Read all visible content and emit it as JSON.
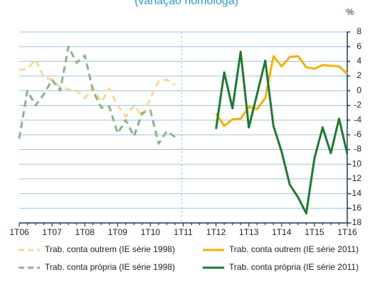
{
  "chart_data": {
    "type": "line",
    "title": "(variação homóloga)",
    "unit": "%",
    "categories": [
      "1T06",
      null,
      null,
      null,
      "1T07",
      null,
      null,
      null,
      "1T08",
      null,
      null,
      null,
      "1T09",
      null,
      null,
      null,
      "1T10",
      null,
      null,
      null,
      "1T11",
      null,
      null,
      null,
      "1T12",
      null,
      null,
      null,
      "1T13",
      null,
      null,
      null,
      "1T14",
      null,
      null,
      null,
      "1T15",
      null,
      null,
      null,
      "1T16"
    ],
    "series": [
      {
        "name": "Trab. conta outrem (IE série 1998)",
        "color": "#fbd896",
        "dashed": true,
        "values": [
          2.8,
          3.0,
          4.2,
          1.8,
          1.5,
          0.5,
          0.2,
          0.0,
          -1.0,
          0.3,
          -1.5,
          0.3,
          -2.0,
          -3.5,
          -2.0,
          -3.5,
          -1.0,
          1.3,
          1.5,
          0.8,
          null,
          null,
          null,
          null,
          null,
          null,
          null,
          null,
          null,
          null,
          null,
          null,
          null,
          null,
          null,
          null,
          null,
          null,
          null,
          null,
          null
        ]
      },
      {
        "name": "Trab. conta outrem (IE série 2011)",
        "color": "#f5b300",
        "dashed": false,
        "values": [
          null,
          null,
          null,
          null,
          null,
          null,
          null,
          null,
          null,
          null,
          null,
          null,
          null,
          null,
          null,
          null,
          null,
          null,
          null,
          null,
          null,
          null,
          null,
          null,
          -3.1,
          -4.8,
          -3.9,
          -3.8,
          -2.2,
          -2.5,
          -1.0,
          4.7,
          3.3,
          4.6,
          4.7,
          3.2,
          3.0,
          3.5,
          3.4,
          3.3,
          2.3
        ]
      },
      {
        "name": "Trab. conta própria (IE série 1998)",
        "color": "#8db38a",
        "dashed": true,
        "values": [
          -6.5,
          0.0,
          -2.0,
          -0.5,
          1.5,
          0.0,
          6.0,
          3.8,
          4.8,
          0.0,
          -2.3,
          -2.2,
          -5.8,
          -4.0,
          -6.2,
          -3.0,
          -2.7,
          -7.2,
          -5.5,
          -6.3,
          null,
          null,
          null,
          null,
          null,
          null,
          null,
          null,
          null,
          null,
          null,
          null,
          null,
          null,
          null,
          null,
          null,
          null,
          null,
          null,
          null
        ]
      },
      {
        "name": "Trab. conta própria (IE série 2011)",
        "color": "#1e7a2e",
        "dashed": false,
        "values": [
          null,
          null,
          null,
          null,
          null,
          null,
          null,
          null,
          null,
          null,
          null,
          null,
          null,
          null,
          null,
          null,
          null,
          null,
          null,
          null,
          null,
          null,
          null,
          null,
          -5.2,
          2.5,
          -2.4,
          5.3,
          -5.0,
          -0.5,
          4.1,
          -4.8,
          -8.3,
          -12.8,
          -14.5,
          -16.7,
          -9.2,
          -5.0,
          -8.5,
          -3.8,
          -8.6
        ]
      }
    ],
    "ylim": [
      -18,
      8
    ],
    "yticks": [
      -18,
      -16,
      -14,
      -12,
      -10,
      -8,
      -6,
      -4,
      -2,
      0,
      2,
      4,
      6,
      8
    ],
    "grid": true
  }
}
